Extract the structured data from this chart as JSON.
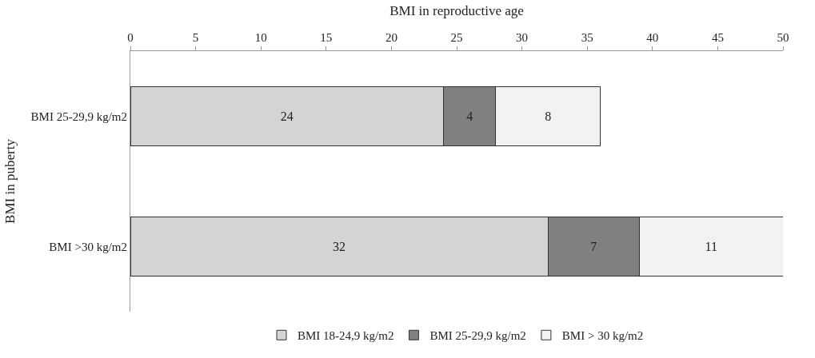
{
  "chart_data": {
    "type": "bar",
    "orientation": "horizontal",
    "stacked": true,
    "xlabel": "BMI in reproductive age",
    "ylabel": "BMI in puberty",
    "categories": [
      "BMI 25-29,9 kg/m2",
      "BMI >30 kg/m2"
    ],
    "series": [
      {
        "name": "BMI 18-24,9 kg/m2",
        "color": "#d4d4d4",
        "values": [
          24,
          32
        ]
      },
      {
        "name": "BMI 25-29,9 kg/m2",
        "color": "#808080",
        "values": [
          4,
          7
        ]
      },
      {
        "name": "BMI > 30 kg/m2",
        "color": "#f2f2f2",
        "values": [
          8,
          11
        ]
      }
    ],
    "xlim": [
      0,
      50
    ],
    "xticks": [
      0,
      5,
      10,
      15,
      20,
      25,
      30,
      35,
      40,
      45,
      50
    ],
    "data_labels": true,
    "legend": "bottom"
  }
}
